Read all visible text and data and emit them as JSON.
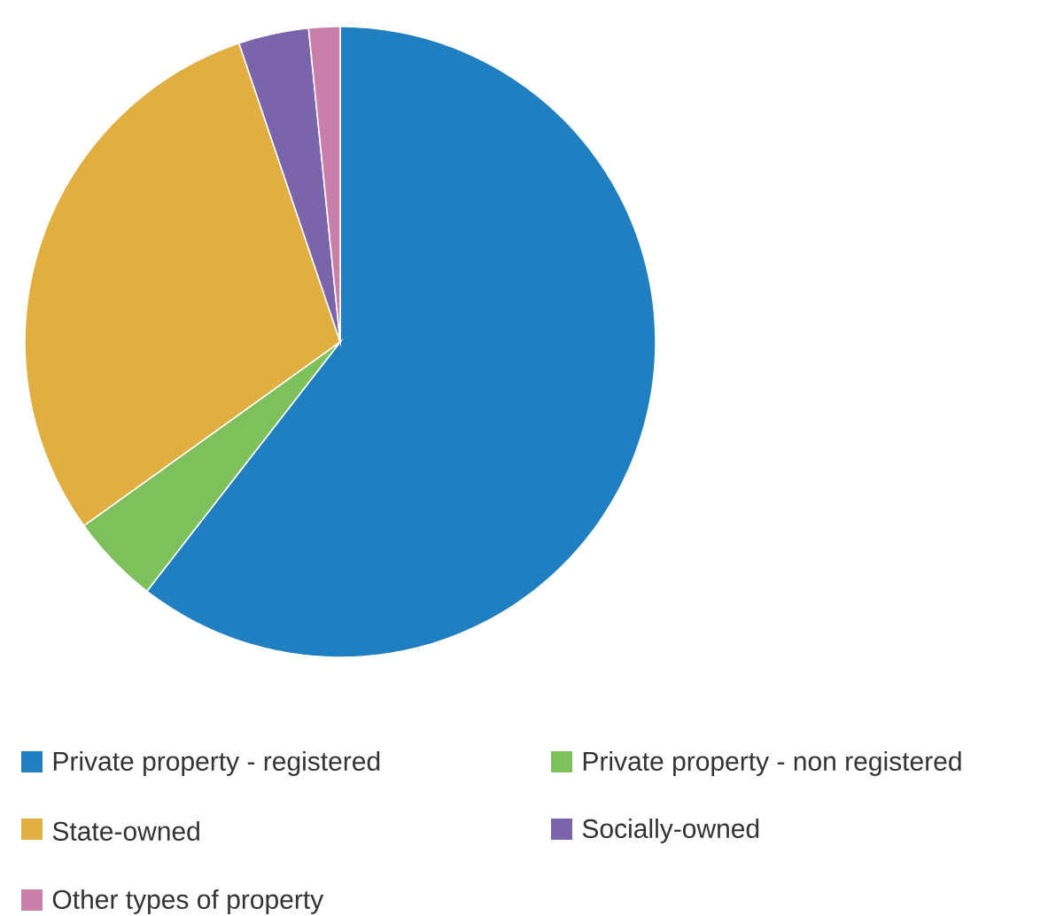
{
  "chart_data": {
    "type": "pie",
    "categories": [
      "Private property - registered",
      "Private property - non registered",
      "State-owned",
      "Socially-owned",
      "Other types of property"
    ],
    "values": [
      60.5,
      4.6,
      29.7,
      3.6,
      1.6
    ],
    "colors": [
      "#1f7fc0",
      "#7dc05c",
      "#e1af41",
      "#7a64ab",
      "#c97fa9"
    ],
    "legend": "bottom"
  }
}
